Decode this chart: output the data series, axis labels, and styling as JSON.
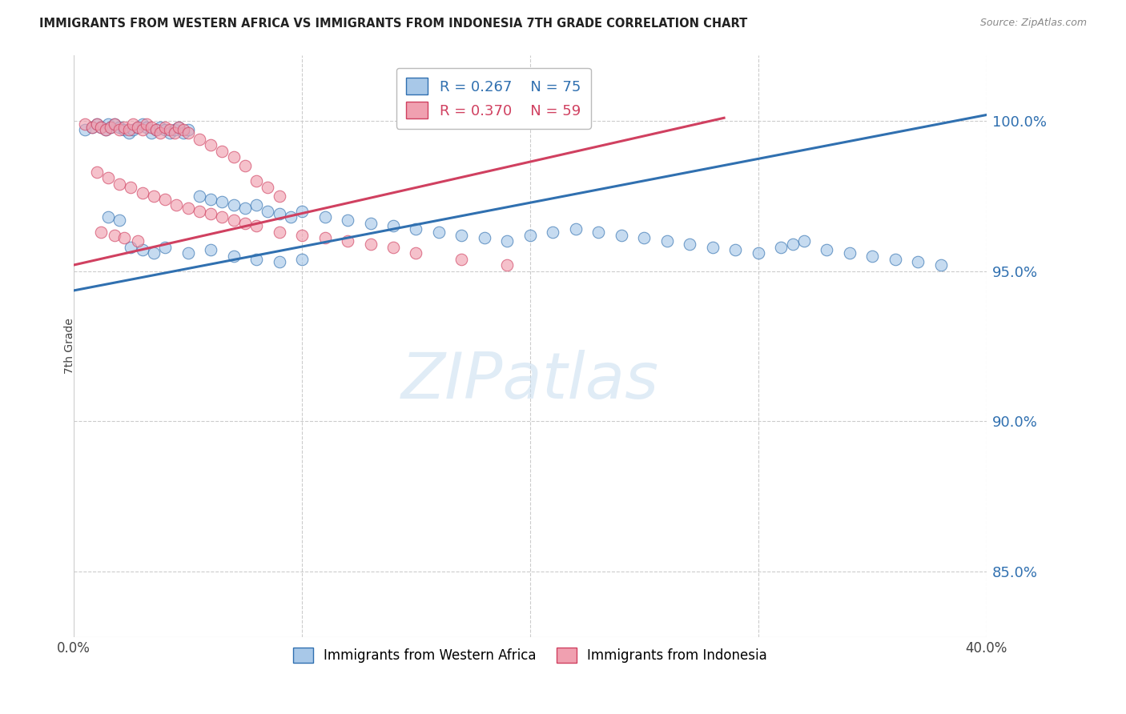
{
  "title": "IMMIGRANTS FROM WESTERN AFRICA VS IMMIGRANTS FROM INDONESIA 7TH GRADE CORRELATION CHART",
  "source": "Source: ZipAtlas.com",
  "ylabel": "7th Grade",
  "ytick_labels": [
    "100.0%",
    "95.0%",
    "90.0%",
    "85.0%"
  ],
  "ytick_values": [
    1.0,
    0.95,
    0.9,
    0.85
  ],
  "xlim": [
    0.0,
    0.4
  ],
  "ylim": [
    0.828,
    1.022
  ],
  "blue_color": "#a8c8e8",
  "pink_color": "#f0a0b0",
  "blue_line_color": "#3070b0",
  "pink_line_color": "#d04060",
  "watermark_text": "ZIPatlas",
  "blue_line_x0": 0.0,
  "blue_line_y0": 0.9435,
  "blue_line_x1": 0.4,
  "blue_line_y1": 1.002,
  "pink_line_x0": 0.0,
  "pink_line_y0": 0.952,
  "pink_line_x1": 0.285,
  "pink_line_y1": 1.001,
  "blue_scatter_x": [
    0.005,
    0.008,
    0.01,
    0.012,
    0.014,
    0.015,
    0.016,
    0.018,
    0.02,
    0.022,
    0.024,
    0.026,
    0.028,
    0.03,
    0.032,
    0.034,
    0.036,
    0.038,
    0.04,
    0.042,
    0.044,
    0.046,
    0.048,
    0.05,
    0.055,
    0.06,
    0.065,
    0.07,
    0.075,
    0.08,
    0.085,
    0.09,
    0.095,
    0.1,
    0.11,
    0.12,
    0.13,
    0.14,
    0.15,
    0.16,
    0.17,
    0.18,
    0.19,
    0.2,
    0.21,
    0.22,
    0.23,
    0.24,
    0.25,
    0.26,
    0.27,
    0.28,
    0.29,
    0.3,
    0.31,
    0.315,
    0.32,
    0.33,
    0.34,
    0.35,
    0.36,
    0.37,
    0.38,
    0.025,
    0.03,
    0.035,
    0.04,
    0.05,
    0.06,
    0.07,
    0.08,
    0.09,
    0.1,
    0.015,
    0.02
  ],
  "blue_scatter_y": [
    0.997,
    0.998,
    0.999,
    0.998,
    0.997,
    0.999,
    0.998,
    0.999,
    0.998,
    0.997,
    0.996,
    0.997,
    0.998,
    0.999,
    0.998,
    0.996,
    0.997,
    0.998,
    0.997,
    0.996,
    0.997,
    0.998,
    0.996,
    0.997,
    0.975,
    0.974,
    0.973,
    0.972,
    0.971,
    0.972,
    0.97,
    0.969,
    0.968,
    0.97,
    0.968,
    0.967,
    0.966,
    0.965,
    0.964,
    0.963,
    0.962,
    0.961,
    0.96,
    0.962,
    0.963,
    0.964,
    0.963,
    0.962,
    0.961,
    0.96,
    0.959,
    0.958,
    0.957,
    0.956,
    0.958,
    0.959,
    0.96,
    0.957,
    0.956,
    0.955,
    0.954,
    0.953,
    0.952,
    0.958,
    0.957,
    0.956,
    0.958,
    0.956,
    0.957,
    0.955,
    0.954,
    0.953,
    0.954,
    0.968,
    0.967
  ],
  "pink_scatter_x": [
    0.005,
    0.008,
    0.01,
    0.012,
    0.014,
    0.016,
    0.018,
    0.02,
    0.022,
    0.024,
    0.026,
    0.028,
    0.03,
    0.032,
    0.034,
    0.036,
    0.038,
    0.04,
    0.042,
    0.044,
    0.046,
    0.048,
    0.05,
    0.055,
    0.06,
    0.065,
    0.07,
    0.075,
    0.08,
    0.085,
    0.09,
    0.01,
    0.015,
    0.02,
    0.025,
    0.03,
    0.035,
    0.04,
    0.045,
    0.05,
    0.055,
    0.06,
    0.065,
    0.07,
    0.075,
    0.08,
    0.09,
    0.1,
    0.11,
    0.12,
    0.13,
    0.14,
    0.15,
    0.17,
    0.19,
    0.012,
    0.018,
    0.022,
    0.028
  ],
  "pink_scatter_y": [
    0.999,
    0.998,
    0.999,
    0.998,
    0.997,
    0.998,
    0.999,
    0.997,
    0.998,
    0.997,
    0.999,
    0.998,
    0.997,
    0.999,
    0.998,
    0.997,
    0.996,
    0.998,
    0.997,
    0.996,
    0.998,
    0.997,
    0.996,
    0.994,
    0.992,
    0.99,
    0.988,
    0.985,
    0.98,
    0.978,
    0.975,
    0.983,
    0.981,
    0.979,
    0.978,
    0.976,
    0.975,
    0.974,
    0.972,
    0.971,
    0.97,
    0.969,
    0.968,
    0.967,
    0.966,
    0.965,
    0.963,
    0.962,
    0.961,
    0.96,
    0.959,
    0.958,
    0.956,
    0.954,
    0.952,
    0.963,
    0.962,
    0.961,
    0.96
  ]
}
